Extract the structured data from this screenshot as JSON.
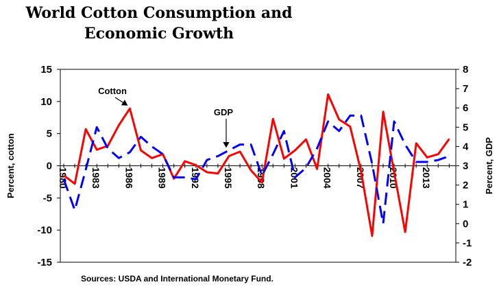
{
  "chart_data": {
    "type": "line",
    "title_line1": "World Cotton Consumption and",
    "title_line2": "Economic Growth",
    "ylabel_left": "Percent, cotton",
    "ylabel_right": "Percent, GDP",
    "ylim_left": [
      -15,
      15
    ],
    "ylim_right": [
      -2,
      8
    ],
    "yticks_left": [
      "15",
      "10",
      "5",
      "0",
      "-5",
      "-10",
      "-15"
    ],
    "yticks_right": [
      "8",
      "7",
      "6",
      "5",
      "4",
      "3",
      "2",
      "1",
      "0",
      "-1",
      "-2"
    ],
    "xticks": [
      "1980",
      "1983",
      "1986",
      "1989",
      "1992",
      "1995",
      "1998",
      "2001",
      "2004",
      "2007",
      "2010",
      "2013"
    ],
    "x": [
      1980,
      1981,
      1982,
      1983,
      1984,
      1985,
      1986,
      1987,
      1988,
      1989,
      1990,
      1991,
      1992,
      1993,
      1994,
      1995,
      1996,
      1997,
      1998,
      1999,
      2000,
      2001,
      2002,
      2003,
      2004,
      2005,
      2006,
      2007,
      2008,
      2009,
      2010,
      2011,
      2012,
      2013,
      2014,
      2015
    ],
    "series": [
      {
        "name": "Cotton",
        "axis": "left",
        "color": "#ff0000",
        "dash": "solid",
        "values": [
          -1.5,
          -2.8,
          5.7,
          2.5,
          3.1,
          6.3,
          8.9,
          2.4,
          1.2,
          1.8,
          -2.0,
          0.7,
          0.1,
          -1.0,
          -1.2,
          1.5,
          2.2,
          -0.7,
          -2.6,
          7.3,
          1.1,
          2.4,
          4.1,
          -0.5,
          11.1,
          7.2,
          6.1,
          -0.9,
          -10.9,
          8.4,
          -1.0,
          -10.3,
          3.5,
          1.3,
          1.8,
          4.2
        ]
      },
      {
        "name": "GDP",
        "axis": "right",
        "color": "#0000ff",
        "dash": "dashed",
        "values": [
          2.3,
          0.7,
          2.8,
          5.0,
          3.9,
          3.4,
          3.7,
          4.5,
          4.0,
          3.6,
          2.4,
          2.4,
          2.3,
          3.3,
          3.5,
          3.8,
          4.1,
          4.1,
          2.5,
          3.6,
          4.8,
          2.4,
          2.9,
          3.9,
          5.3,
          4.8,
          5.6,
          5.6,
          3.1,
          0.0,
          5.3,
          4.1,
          3.2,
          3.2,
          3.3,
          3.5
        ]
      }
    ],
    "annotations": [
      {
        "label": "Cotton",
        "target_year": 1986,
        "target_series": "Cotton"
      },
      {
        "label": "GDP",
        "target_year": 1995,
        "target_series": "GDP"
      }
    ],
    "legend": "none",
    "grid": false,
    "source": "Sources:  USDA and  International Monetary Fund."
  }
}
